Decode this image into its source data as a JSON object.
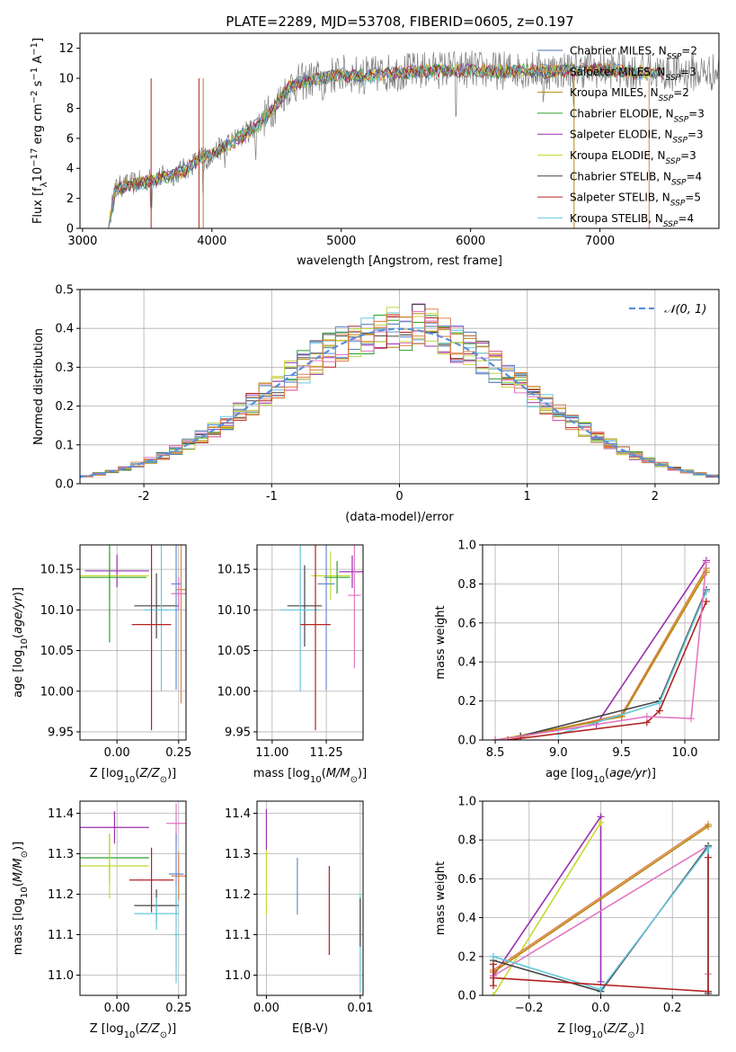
{
  "title": "PLATE=2289, MJD=53708, FIBERID=0605, z=0.197",
  "colors": {
    "Chabrier MILES": "#4c72b0",
    "Salpeter MILES": "#dd8452",
    "Kroupa MILES": "#b8860b",
    "Chabrier ELODIE": "#2ca02c",
    "Salpeter ELODIE": "#9b30b0",
    "Kroupa ELODIE": "#c8d830",
    "Chabrier STELIB": "#444444",
    "Salpeter STELIB": "#b22222",
    "Kroupa STELIB": "#66c8dd",
    "extra_pink": "#e377c2",
    "extra_lime": "#bcd84a",
    "extra_blue": "#6a8ccf",
    "extra_orange": "#e07b39"
  },
  "chart_data": [
    {
      "id": "spectrum",
      "type": "line",
      "xlabel": "wavelength [Angstrom, rest frame]",
      "ylabel": "Flux [f_λ10^-17 erg cm^-2 s^-1 A^-1]",
      "xlim": [
        2980,
        7920
      ],
      "ylim": [
        0,
        13
      ],
      "xticks": [
        3000,
        4000,
        5000,
        6000,
        7000
      ],
      "yticks": [
        0,
        2,
        4,
        6,
        8,
        10,
        12
      ],
      "legend_position": "upper right",
      "legend": [
        {
          "label": "Chabrier MILES, N_SSP=2",
          "color_key": "Chabrier MILES"
        },
        {
          "label": "Salpeter MILES, N_SSP=3",
          "color_key": "Salpeter MILES"
        },
        {
          "label": "Kroupa MILES, N_SSP=2",
          "color_key": "Kroupa MILES"
        },
        {
          "label": "Chabrier ELODIE, N_SSP=3",
          "color_key": "Chabrier ELODIE"
        },
        {
          "label": "Salpeter ELODIE, N_SSP=3",
          "color_key": "Salpeter ELODIE"
        },
        {
          "label": "Kroupa ELODIE, N_SSP=3",
          "color_key": "Kroupa ELODIE"
        },
        {
          "label": "Chabrier STELIB, N_SSP=4",
          "color_key": "Chabrier STELIB"
        },
        {
          "label": "Salpeter STELIB, N_SSP=5",
          "color_key": "Salpeter STELIB"
        },
        {
          "label": "Kroupa STELIB, N_SSP=4",
          "color_key": "Kroupa STELIB"
        }
      ],
      "envelope": {
        "x": [
          3200,
          3250,
          3300,
          3400,
          3500,
          3600,
          3700,
          3800,
          3900,
          4000,
          4100,
          4200,
          4300,
          4400,
          4500,
          4600,
          4800,
          5000,
          5200,
          5400,
          5600,
          5800,
          6000,
          6200,
          6400,
          6600,
          6800,
          7000,
          7200,
          7400
        ],
        "y": [
          0.0,
          2.6,
          2.8,
          3.0,
          3.2,
          3.4,
          3.6,
          4.0,
          4.6,
          5.0,
          5.5,
          6.0,
          6.6,
          7.3,
          8.3,
          9.5,
          10.0,
          10.3,
          10.2,
          10.4,
          10.5,
          10.6,
          10.6,
          10.5,
          10.6,
          10.5,
          10.6,
          10.6,
          10.5,
          10.4
        ]
      },
      "dips": [
        3530,
        3933,
        3968,
        4101,
        4340,
        4861,
        5175,
        5890,
        6563,
        6800,
        7380
      ]
    },
    {
      "id": "residuals",
      "type": "line",
      "xlabel": "(data-model)/error",
      "ylabel": "Normed distribution",
      "xlim": [
        -2.5,
        2.5
      ],
      "ylim": [
        0,
        0.5
      ],
      "xticks": [
        -2,
        -1,
        0,
        1,
        2
      ],
      "yticks": [
        0.0,
        0.1,
        0.2,
        0.3,
        0.4,
        0.5
      ],
      "grid": true,
      "reference": {
        "label": "𝒩(0, 1)",
        "mean": 0,
        "sigma": 1
      }
    },
    {
      "id": "age_vs_Z",
      "type": "scatter",
      "xlabel": "Z [log10(Z/Z☉)]",
      "ylabel": "age  [log10(age/yr)]",
      "xlim": [
        -0.15,
        0.28
      ],
      "ylim": [
        9.94,
        10.18
      ],
      "xticks": [
        0.0,
        0.25
      ],
      "yticks": [
        9.95,
        10.0,
        10.05,
        10.1,
        10.15
      ],
      "grid": true,
      "points": [
        {
          "color_key": "Salpeter ELODIE",
          "x": 0.0,
          "xerr": 0.13,
          "y": 10.148,
          "yerr": 0.02
        },
        {
          "color_key": "Kroupa ELODIE",
          "x": -0.03,
          "xerr": 0.16,
          "y": 10.142,
          "yerr": 0.03
        },
        {
          "color_key": "Chabrier ELODIE",
          "x": -0.03,
          "xerr": 0.15,
          "y": 10.14,
          "yerr": 0.08
        },
        {
          "color_key": "Chabrier STELIB",
          "x": 0.16,
          "xerr": 0.09,
          "y": 10.105,
          "yerr": 0.04
        },
        {
          "color_key": "Kroupa STELIB",
          "x": 0.18,
          "xerr": 0.07,
          "y": 10.1,
          "yerr": 0.1
        },
        {
          "color_key": "Salpeter STELIB",
          "x": 0.14,
          "xerr": 0.08,
          "y": 10.082,
          "yerr": 0.13
        },
        {
          "color_key": "extra_pink",
          "x": 0.25,
          "xerr": 0.03,
          "y": 10.12,
          "yerr": 0.02
        },
        {
          "color_key": "Salpeter MILES",
          "x": 0.26,
          "xerr": 0.02,
          "y": 10.125,
          "yerr": 0.14
        },
        {
          "color_key": "extra_blue",
          "x": 0.24,
          "xerr": 0.02,
          "y": 10.132,
          "yerr": 0.13
        }
      ]
    },
    {
      "id": "age_vs_mass",
      "type": "scatter",
      "xlabel": "mass [log10(M/M☉)]",
      "ylabel": "",
      "xlim": [
        10.93,
        11.42
      ],
      "ylim": [
        9.94,
        10.18
      ],
      "xticks": [
        11.0,
        11.25
      ],
      "yticks": [
        9.95,
        10.0,
        10.05,
        10.1,
        10.15
      ],
      "grid": true,
      "points": [
        {
          "color_key": "Salpeter ELODIE",
          "x": 11.37,
          "xerr": 0.06,
          "y": 10.147,
          "yerr": 0.02
        },
        {
          "color_key": "Kroupa ELODIE",
          "x": 11.27,
          "xerr": 0.09,
          "y": 10.142,
          "yerr": 0.03
        },
        {
          "color_key": "Chabrier ELODIE",
          "x": 11.3,
          "xerr": 0.06,
          "y": 10.14,
          "yerr": 0.02
        },
        {
          "color_key": "extra_blue",
          "x": 11.25,
          "xerr": 0.04,
          "y": 10.132,
          "yerr": 0.13
        },
        {
          "color_key": "extra_pink",
          "x": 11.38,
          "xerr": 0.03,
          "y": 10.118,
          "yerr": 0.09
        },
        {
          "color_key": "Chabrier STELIB",
          "x": 11.15,
          "xerr": 0.08,
          "y": 10.105,
          "yerr": 0.05
        },
        {
          "color_key": "Kroupa STELIB",
          "x": 11.13,
          "xerr": 0.09,
          "y": 10.1,
          "yerr": 0.1
        },
        {
          "color_key": "Salpeter STELIB",
          "x": 11.2,
          "xerr": 0.07,
          "y": 10.082,
          "yerr": 0.13
        }
      ]
    },
    {
      "id": "mass_weight_vs_age",
      "type": "line",
      "xlabel": "age  [log10(age/yr)]",
      "ylabel": "mass weight",
      "xlim": [
        8.4,
        10.27
      ],
      "ylim": [
        0,
        1
      ],
      "xticks": [
        8.5,
        9.0,
        9.5,
        10.0
      ],
      "yticks": [
        0.0,
        0.2,
        0.4,
        0.6,
        0.8,
        1.0
      ],
      "grid": true,
      "series": [
        {
          "color_key": "Salpeter ELODIE",
          "x": [
            8.5,
            9.3,
            10.17
          ],
          "y": [
            0.0,
            0.08,
            0.92
          ]
        },
        {
          "color_key": "Kroupa ELODIE",
          "x": [
            8.5,
            9.5,
            10.17
          ],
          "y": [
            0.0,
            0.12,
            0.87
          ]
        },
        {
          "color_key": "Salpeter MILES",
          "x": [
            8.6,
            9.5,
            10.17
          ],
          "y": [
            0.0,
            0.13,
            0.88
          ]
        },
        {
          "color_key": "Kroupa MILES",
          "x": [
            8.7,
            9.5,
            10.17
          ],
          "y": [
            0.02,
            0.12,
            0.86
          ]
        },
        {
          "color_key": "Chabrier STELIB",
          "x": [
            8.7,
            9.8,
            10.17
          ],
          "y": [
            0.02,
            0.2,
            0.77
          ]
        },
        {
          "color_key": "Kroupa STELIB",
          "x": [
            9.0,
            9.8,
            10.17
          ],
          "y": [
            0.03,
            0.19,
            0.76
          ]
        },
        {
          "color_key": "Salpeter STELIB",
          "x": [
            8.6,
            9.7,
            9.8,
            10.17
          ],
          "y": [
            0.0,
            0.09,
            0.15,
            0.71
          ]
        },
        {
          "color_key": "extra_pink",
          "x": [
            8.5,
            9.7,
            10.05,
            10.17
          ],
          "y": [
            0.0,
            0.12,
            0.11,
            0.91
          ]
        }
      ]
    },
    {
      "id": "mass_vs_Z",
      "type": "scatter",
      "xlabel": "Z [log10(Z/Z☉)]",
      "ylabel": "mass [log10(M/M☉)]",
      "xlim": [
        -0.15,
        0.28
      ],
      "ylim": [
        10.95,
        11.43
      ],
      "xticks": [
        0.0,
        0.25
      ],
      "yticks": [
        11.0,
        11.1,
        11.2,
        11.3,
        11.4
      ],
      "grid": true,
      "points": [
        {
          "color_key": "Salpeter ELODIE",
          "x": -0.01,
          "xerr": 0.14,
          "y": 11.365,
          "yerr": 0.04
        },
        {
          "color_key": "Chabrier ELODIE",
          "x": -0.03,
          "xerr": 0.16,
          "y": 11.29,
          "yerr": 0.06
        },
        {
          "color_key": "Kroupa ELODIE",
          "x": -0.03,
          "xerr": 0.16,
          "y": 11.27,
          "yerr": 0.08
        },
        {
          "color_key": "Salpeter STELIB",
          "x": 0.14,
          "xerr": 0.09,
          "y": 11.235,
          "yerr": 0.08
        },
        {
          "color_key": "Chabrier STELIB",
          "x": 0.16,
          "xerr": 0.09,
          "y": 11.172,
          "yerr": 0.04
        },
        {
          "color_key": "Kroupa STELIB",
          "x": 0.16,
          "xerr": 0.09,
          "y": 11.152,
          "yerr": 0.04
        },
        {
          "color_key": "extra_pink",
          "x": 0.24,
          "xerr": 0.04,
          "y": 11.375,
          "yerr": 0.05
        },
        {
          "color_key": "Salpeter MILES",
          "x": 0.25,
          "xerr": 0.03,
          "y": 11.245,
          "yerr": 0.06
        },
        {
          "color_key": "extra_blue",
          "x": 0.24,
          "xerr": 0.03,
          "y": 11.25,
          "yerr": 0.1
        },
        {
          "color_key": "Kroupa STELIB",
          "x": 0.24,
          "xerr": 0.01,
          "y": 11.1,
          "yerr": 0.12
        }
      ]
    },
    {
      "id": "mass_vs_ebv",
      "type": "scatter",
      "xlabel": "E(B-V)",
      "ylabel": "",
      "xlim": [
        -0.001,
        0.0103
      ],
      "ylim": [
        10.95,
        11.43
      ],
      "xticks": [
        0.0,
        0.01
      ],
      "yticks": [
        11.0,
        11.1,
        11.2,
        11.3,
        11.4
      ],
      "grid": true,
      "points": [
        {
          "color_key": "Salpeter ELODIE",
          "x": 0.0,
          "y": 11.36,
          "yerr": 0.05
        },
        {
          "color_key": "Kroupa ELODIE",
          "x": 0.0,
          "y": 11.23,
          "yerr": 0.08
        },
        {
          "color_key": "extra_blue",
          "x": 0.0033,
          "y": 11.22,
          "yerr": 0.07
        },
        {
          "color_key": "Salpeter STELIB",
          "x": 0.0067,
          "y": 11.16,
          "yerr": 0.11
        },
        {
          "color_key": "Kroupa STELIB",
          "x": 0.01,
          "y": 11.08,
          "yerr": 0.12
        },
        {
          "color_key": "Chabrier STELIB",
          "x": 0.01,
          "y": 11.13,
          "yerr": 0.06
        }
      ]
    },
    {
      "id": "mass_weight_vs_Z",
      "type": "line",
      "xlabel": "Z [log10(Z/Z☉)]",
      "ylabel": "mass weight",
      "xlim": [
        -0.33,
        0.33
      ],
      "ylim": [
        0,
        1
      ],
      "xticks": [
        -0.2,
        0.0,
        0.2
      ],
      "yticks": [
        0.0,
        0.2,
        0.4,
        0.6,
        0.8,
        1.0
      ],
      "grid": true,
      "series": [
        {
          "color_key": "Salpeter ELODIE",
          "x": [
            -0.3,
            0.0,
            0.0
          ],
          "y": [
            0.1,
            0.92,
            0.07
          ]
        },
        {
          "color_key": "Kroupa ELODIE",
          "x": [
            -0.3,
            0.0
          ],
          "y": [
            0.0,
            0.89
          ]
        },
        {
          "color_key": "Salpeter MILES",
          "x": [
            -0.3,
            0.3
          ],
          "y": [
            0.13,
            0.88
          ]
        },
        {
          "color_key": "Kroupa MILES",
          "x": [
            -0.3,
            0.3
          ],
          "y": [
            0.12,
            0.87
          ]
        },
        {
          "color_key": "extra_pink",
          "x": [
            -0.3,
            0.3,
            0.3
          ],
          "y": [
            0.1,
            0.77,
            0.11
          ]
        },
        {
          "color_key": "Chabrier STELIB",
          "x": [
            -0.3,
            0.0,
            0.3,
            0.3
          ],
          "y": [
            0.18,
            0.02,
            0.77,
            0.01
          ]
        },
        {
          "color_key": "Kroupa STELIB",
          "x": [
            -0.3,
            0.0,
            0.3,
            0.3
          ],
          "y": [
            0.2,
            0.03,
            0.76,
            0.02
          ]
        },
        {
          "color_key": "Salpeter STELIB",
          "x": [
            -0.3,
            0.3,
            0.3
          ],
          "y": [
            0.09,
            0.02,
            0.71
          ]
        },
        {
          "color_key": "Salpeter STELIB",
          "x": [
            -0.3,
            -0.3
          ],
          "y": [
            0.16,
            0.05
          ]
        }
      ]
    }
  ]
}
